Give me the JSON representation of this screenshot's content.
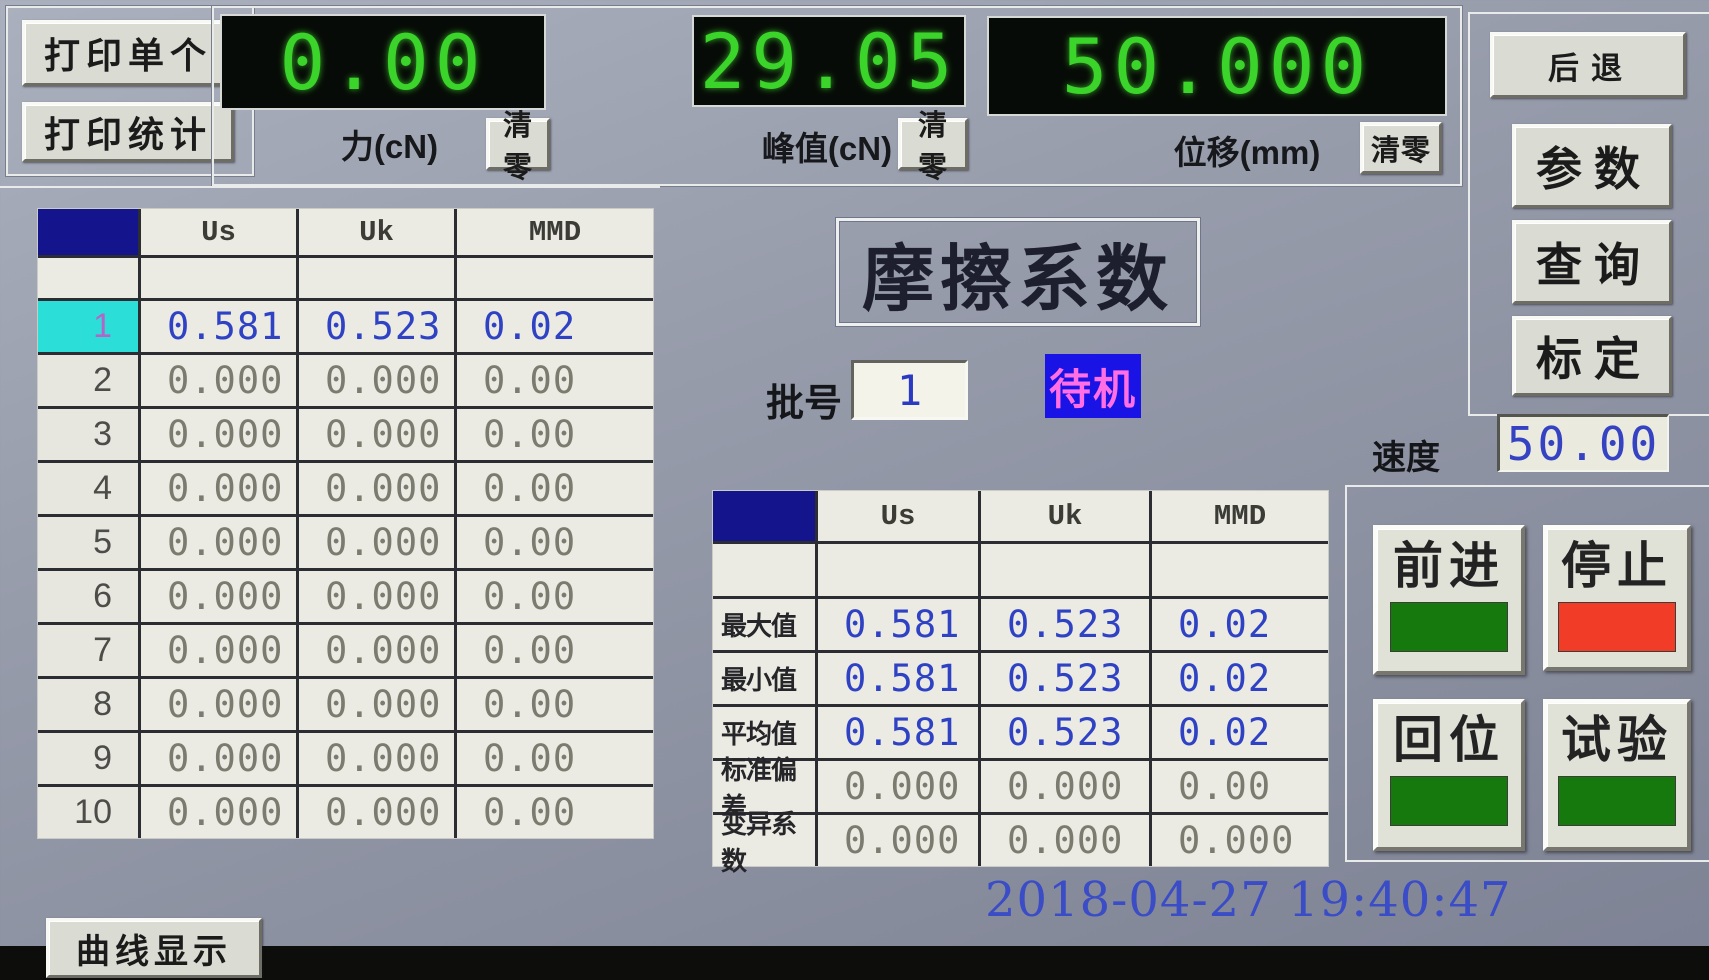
{
  "print_panel": {
    "print_single": "打印单个",
    "print_stats": "打印统计"
  },
  "displays": {
    "force": {
      "value": "0.00",
      "label": "力(cN)",
      "clear": "清零"
    },
    "peak": {
      "value": "29.05",
      "label": "峰值(cN)",
      "clear": "清零"
    },
    "displacement": {
      "value": "50.000",
      "label": "位移(mm)",
      "clear": "清零"
    }
  },
  "nav": {
    "back": "后退",
    "params": "参数",
    "query": "查询",
    "calibrate": "标定"
  },
  "results_table": {
    "headers": [
      "",
      "Us",
      "Uk",
      "MMD"
    ],
    "rows": [
      {
        "num": "1",
        "us": "0.581",
        "uk": "0.523",
        "mmd": "0.02",
        "selected": true
      },
      {
        "num": "2",
        "us": "0.000",
        "uk": "0.000",
        "mmd": "0.00",
        "selected": false
      },
      {
        "num": "3",
        "us": "0.000",
        "uk": "0.000",
        "mmd": "0.00",
        "selected": false
      },
      {
        "num": "4",
        "us": "0.000",
        "uk": "0.000",
        "mmd": "0.00",
        "selected": false
      },
      {
        "num": "5",
        "us": "0.000",
        "uk": "0.000",
        "mmd": "0.00",
        "selected": false
      },
      {
        "num": "6",
        "us": "0.000",
        "uk": "0.000",
        "mmd": "0.00",
        "selected": false
      },
      {
        "num": "7",
        "us": "0.000",
        "uk": "0.000",
        "mmd": "0.00",
        "selected": false
      },
      {
        "num": "8",
        "us": "0.000",
        "uk": "0.000",
        "mmd": "0.00",
        "selected": false
      },
      {
        "num": "9",
        "us": "0.000",
        "uk": "0.000",
        "mmd": "0.00",
        "selected": false
      },
      {
        "num": "10",
        "us": "0.000",
        "uk": "0.000",
        "mmd": "0.00",
        "selected": false
      }
    ]
  },
  "main": {
    "title": "摩擦系数",
    "batch_label": "批号",
    "batch_value": "1",
    "status": "待机",
    "speed_label": "速度",
    "speed_value": "50.00"
  },
  "stats_table": {
    "headers": [
      "",
      "Us",
      "Uk",
      "MMD"
    ],
    "rows": [
      {
        "label": "最大值",
        "us": "0.581",
        "uk": "0.523",
        "mmd": "0.02",
        "highlight": true
      },
      {
        "label": "最小值",
        "us": "0.581",
        "uk": "0.523",
        "mmd": "0.02",
        "highlight": true
      },
      {
        "label": "平均值",
        "us": "0.581",
        "uk": "0.523",
        "mmd": "0.02",
        "highlight": true
      },
      {
        "label": "标准偏差",
        "us": "0.000",
        "uk": "0.000",
        "mmd": "0.00",
        "highlight": false
      },
      {
        "label": "变异系数",
        "us": "0.000",
        "uk": "0.000",
        "mmd": "0.000",
        "highlight": false
      }
    ]
  },
  "controls": [
    {
      "id": "forward",
      "label": "前进",
      "indicator": "#15790e"
    },
    {
      "id": "stop",
      "label": "停止",
      "indicator": "#f13c28"
    },
    {
      "id": "home",
      "label": "回位",
      "indicator": "#15790e"
    },
    {
      "id": "test",
      "label": "试验",
      "indicator": "#15790e"
    }
  ],
  "footer": {
    "datetime": "2018-04-27 19:40:47",
    "curve_button": "曲线显示"
  },
  "colors": {
    "led_green": "#3bd42b",
    "value_blue": "#2f42c4",
    "value_grey": "#7b7b70",
    "selected_cyan": "#2bdfd8",
    "header_navy": "#14148c",
    "status_bg": "#1a13e6",
    "status_text": "#ff6ee2"
  }
}
